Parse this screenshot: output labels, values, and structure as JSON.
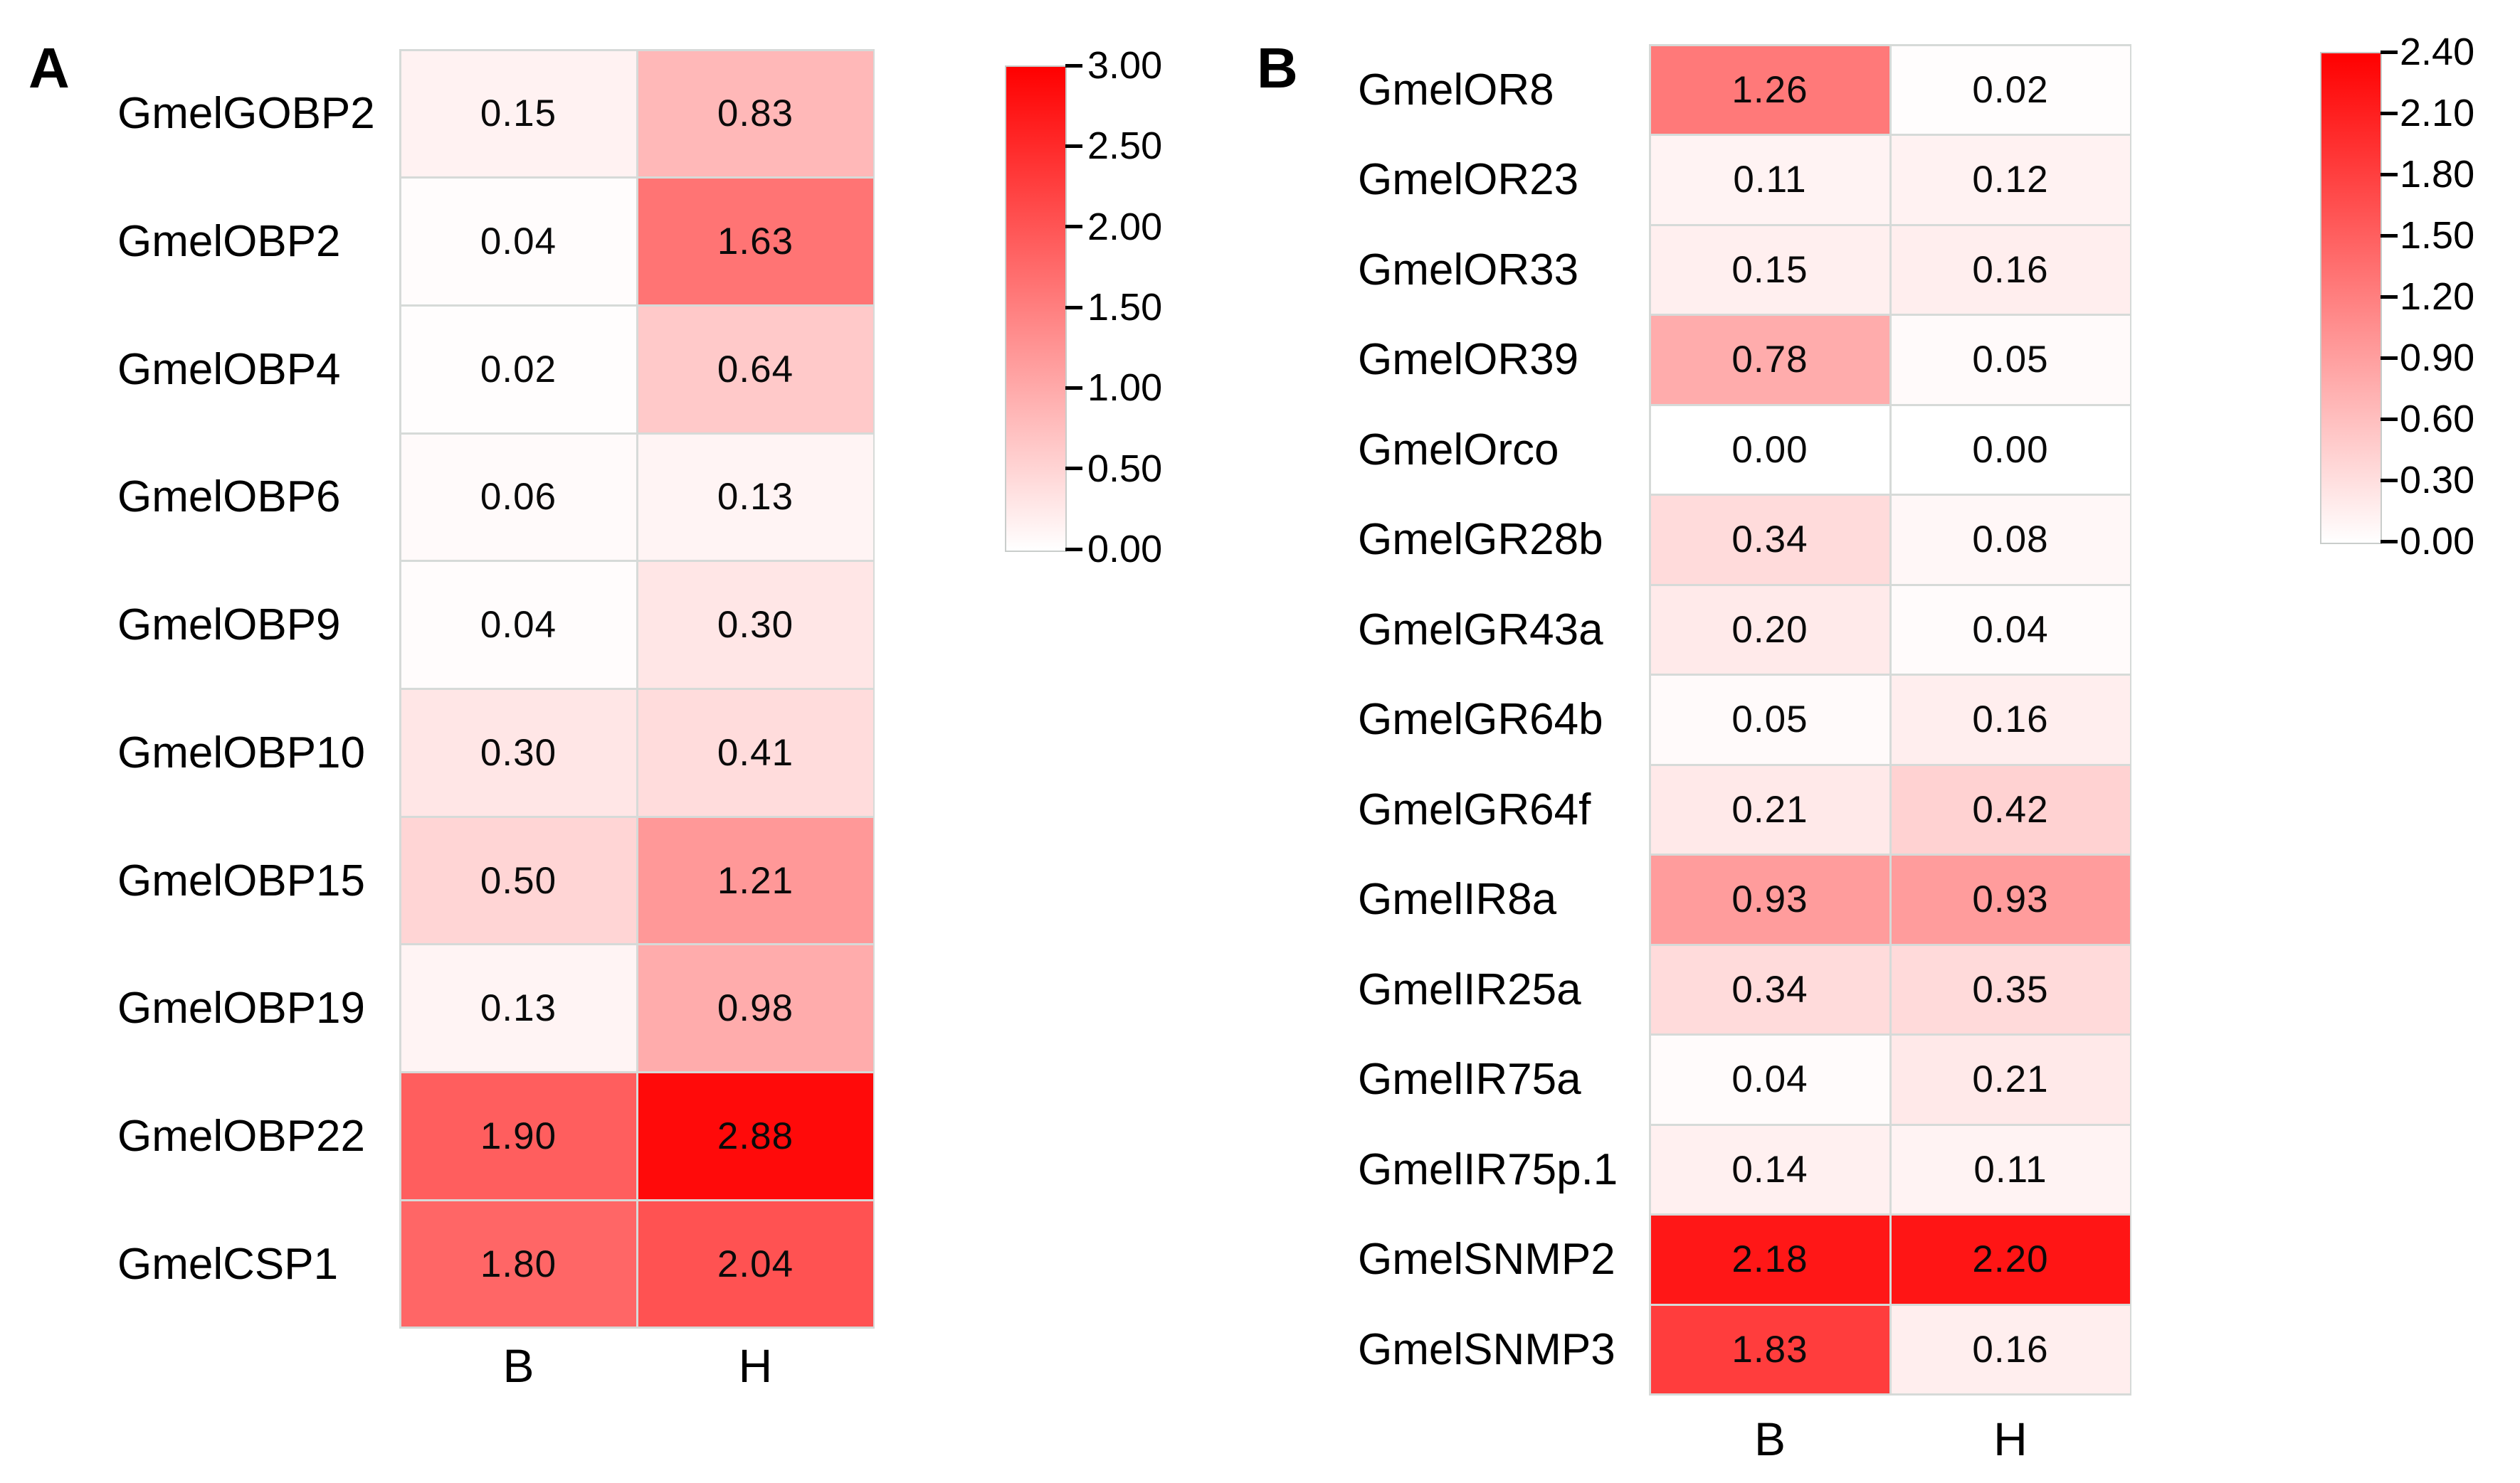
{
  "chart_data": [
    {
      "type": "heatmap",
      "panel_label": "A",
      "rows": [
        "GmelGOBP2",
        "GmelOBP2",
        "GmelOBP4",
        "GmelOBP6",
        "GmelOBP9",
        "GmelOBP10",
        "GmelOBP15",
        "GmelOBP19",
        "GmelOBP22",
        "GmelCSP1"
      ],
      "columns": [
        "B",
        "H"
      ],
      "values": [
        [
          "0.15",
          "0.83"
        ],
        [
          "0.04",
          "1.63"
        ],
        [
          "0.02",
          "0.64"
        ],
        [
          "0.06",
          "0.13"
        ],
        [
          "0.04",
          "0.30"
        ],
        [
          "0.30",
          "0.41"
        ],
        [
          "0.50",
          "1.21"
        ],
        [
          "0.13",
          "0.98"
        ],
        [
          "1.90",
          "2.88"
        ],
        [
          "1.80",
          "2.04"
        ]
      ],
      "vmin": 0.0,
      "vmax": 3.0,
      "colorbar_ticks": [
        "3.00",
        "2.50",
        "2.00",
        "1.50",
        "1.00",
        "0.50",
        "0.00"
      ],
      "colormap": {
        "low": "#ffffff",
        "high": "#ff0000"
      },
      "legend_position": "right",
      "grid": false,
      "value_text_color": "#0a0a0a"
    },
    {
      "type": "heatmap",
      "panel_label": "B",
      "rows": [
        "GmelOR8",
        "GmelOR23",
        "GmelOR33",
        "GmelOR39",
        "GmelOrco",
        "GmelGR28b",
        "GmelGR43a",
        "GmelGR64b",
        "GmelGR64f",
        "GmelIR8a",
        "GmelIR25a",
        "GmelIR75a",
        "GmelIR75p.1",
        "GmelSNMP2",
        "GmelSNMP3"
      ],
      "columns": [
        "B",
        "H"
      ],
      "values": [
        [
          "1.26",
          "0.02"
        ],
        [
          "0.11",
          "0.12"
        ],
        [
          "0.15",
          "0.16"
        ],
        [
          "0.78",
          "0.05"
        ],
        [
          "0.00",
          "0.00"
        ],
        [
          "0.34",
          "0.08"
        ],
        [
          "0.20",
          "0.04"
        ],
        [
          "0.05",
          "0.16"
        ],
        [
          "0.21",
          "0.42"
        ],
        [
          "0.93",
          "0.93"
        ],
        [
          "0.34",
          "0.35"
        ],
        [
          "0.04",
          "0.21"
        ],
        [
          "0.14",
          "0.11"
        ],
        [
          "2.18",
          "2.20"
        ],
        [
          "1.83",
          "0.16"
        ]
      ],
      "vmin": 0.0,
      "vmax": 2.4,
      "colorbar_ticks": [
        "2.40",
        "2.10",
        "1.80",
        "1.50",
        "1.20",
        "0.90",
        "0.60",
        "0.30",
        "0.00"
      ],
      "colormap": {
        "low": "#ffffff",
        "high": "#ff0000"
      },
      "legend_position": "right",
      "grid": false,
      "value_text_color": "#0a0a0a"
    }
  ],
  "styles": {
    "grid_line_color": "#d6dad8",
    "border_color": "#c9cdcb",
    "background": "#ffffff"
  }
}
